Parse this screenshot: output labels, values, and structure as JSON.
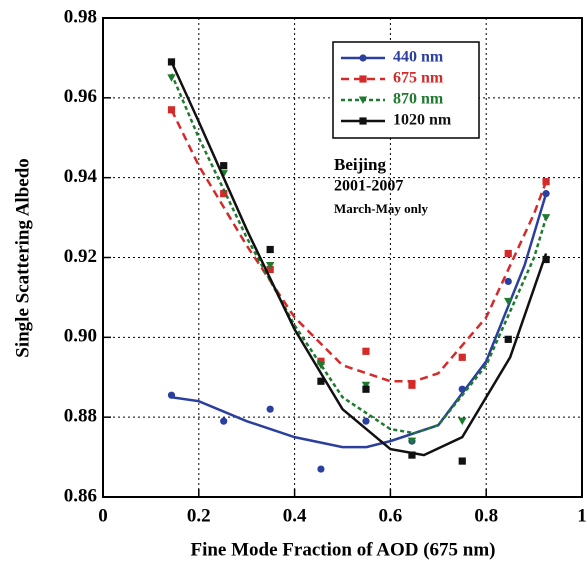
{
  "chart_data": {
    "type": "scatter",
    "xlabel": "Fine Mode Fraction of AOD (675 nm)",
    "ylabel": "Single Scattering Albedo",
    "annotations": [
      "Beijing",
      "2001-2007",
      "March-May only"
    ],
    "xlim": [
      0,
      1
    ],
    "xticks": [
      0,
      0.2,
      0.4,
      0.6,
      0.8,
      1
    ],
    "ylim": [
      0.86,
      0.98
    ],
    "yticks": [
      0.86,
      0.88,
      {
        "value": 0.9,
        "label": "0.90"
      },
      0.92,
      0.94,
      0.96,
      0.98
    ],
    "grid": true,
    "legend": "upper right",
    "x": [
      0.143,
      0.252,
      0.349,
      0.455,
      0.549,
      0.645,
      0.75,
      0.846,
      0.925
    ],
    "series": [
      {
        "name": "440 nm",
        "color": "#2a3f9e",
        "marker": "circle",
        "dash": "solid",
        "values": [
          0.8855,
          0.879,
          0.882,
          0.867,
          0.879,
          0.874,
          0.887,
          0.914,
          0.936
        ],
        "fit_x": [
          0.143,
          0.2,
          0.3,
          0.4,
          0.5,
          0.55,
          0.6,
          0.7,
          0.8,
          0.88,
          0.925
        ],
        "fit_values": [
          0.885,
          0.884,
          0.879,
          0.875,
          0.8725,
          0.8725,
          0.874,
          0.878,
          0.894,
          0.918,
          0.936
        ]
      },
      {
        "name": "675 nm",
        "color": "#d42a2a",
        "marker": "square",
        "dash": "dashed",
        "values": [
          0.957,
          0.936,
          0.917,
          0.894,
          0.8965,
          0.888,
          0.895,
          0.921,
          0.939
        ],
        "fit_x": [
          0.143,
          0.2,
          0.3,
          0.4,
          0.5,
          0.6,
          0.65,
          0.7,
          0.8,
          0.9,
          0.925
        ],
        "fit_values": [
          0.957,
          0.943,
          0.923,
          0.905,
          0.893,
          0.889,
          0.889,
          0.891,
          0.905,
          0.931,
          0.939
        ]
      },
      {
        "name": "870 nm",
        "color": "#1e7a2e",
        "marker": "triangle-down",
        "dash": "dotted",
        "values": [
          0.965,
          0.941,
          0.918,
          0.893,
          0.888,
          0.874,
          0.879,
          0.909,
          0.93
        ],
        "fit_x": [
          0.143,
          0.2,
          0.3,
          0.4,
          0.5,
          0.6,
          0.65,
          0.7,
          0.8,
          0.9,
          0.925
        ],
        "fit_values": [
          0.966,
          0.95,
          0.925,
          0.903,
          0.885,
          0.877,
          0.876,
          0.878,
          0.893,
          0.92,
          0.93
        ]
      },
      {
        "name": "1020 nm",
        "color": "#111111",
        "marker": "square",
        "dash": "solid",
        "values": [
          0.969,
          0.943,
          0.922,
          0.889,
          0.887,
          0.8705,
          0.869,
          0.8995,
          0.9195
        ],
        "fit_x": [
          0.143,
          0.2,
          0.3,
          0.4,
          0.5,
          0.6,
          0.67,
          0.75,
          0.85,
          0.925
        ],
        "fit_values": [
          0.969,
          0.954,
          0.927,
          0.902,
          0.882,
          0.872,
          0.8705,
          0.875,
          0.895,
          0.921
        ]
      }
    ]
  }
}
